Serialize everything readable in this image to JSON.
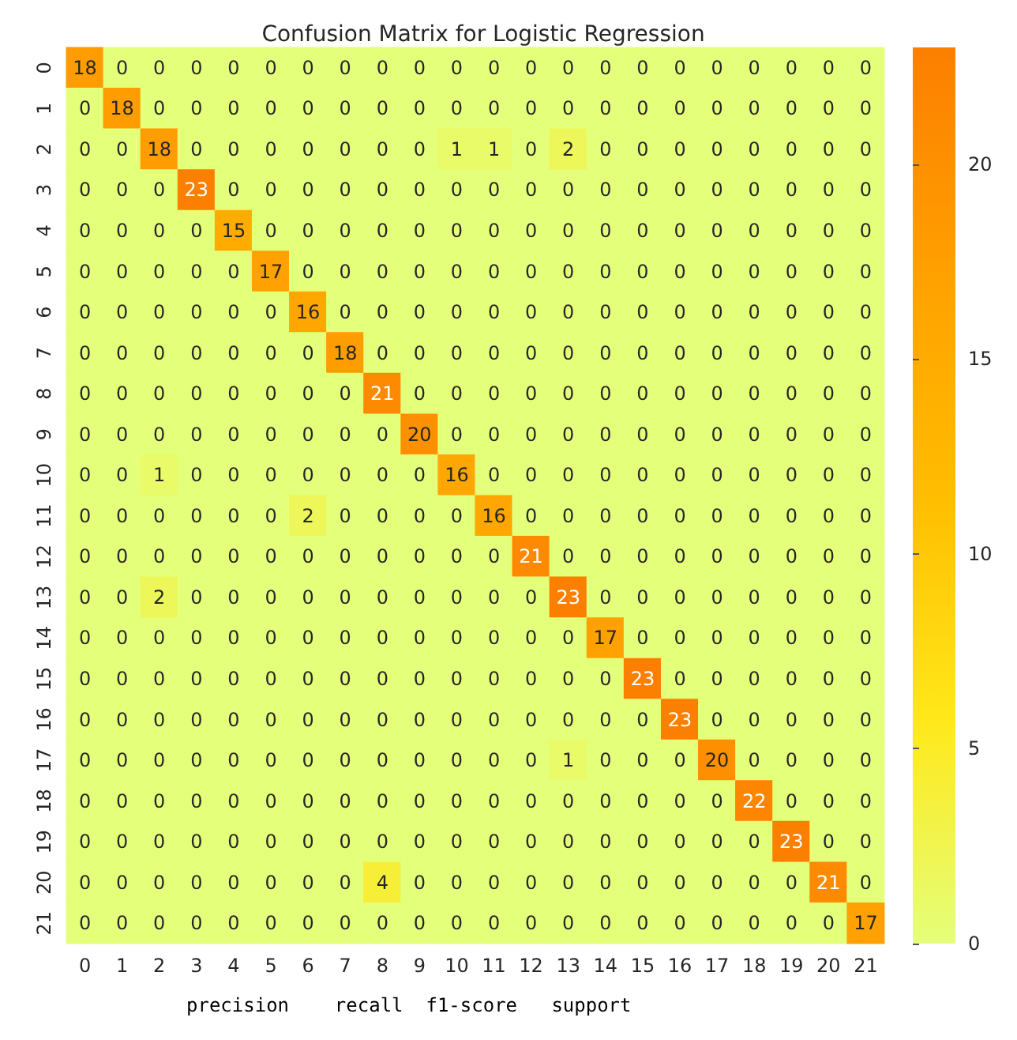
{
  "chart_data": {
    "type": "heatmap",
    "title": "Confusion Matrix for Logistic Regression",
    "categories": [
      "0",
      "1",
      "2",
      "3",
      "4",
      "5",
      "6",
      "7",
      "8",
      "9",
      "10",
      "11",
      "12",
      "13",
      "14",
      "15",
      "16",
      "17",
      "18",
      "19",
      "20",
      "21"
    ],
    "y_categories": [
      "0",
      "1",
      "2",
      "3",
      "4",
      "5",
      "6",
      "7",
      "8",
      "9",
      "10",
      "11",
      "12",
      "13",
      "14",
      "15",
      "16",
      "17",
      "18",
      "19",
      "20",
      "21"
    ],
    "cells": [
      [
        18,
        0,
        0,
        0,
        0,
        0,
        0,
        0,
        0,
        0,
        0,
        0,
        0,
        0,
        0,
        0,
        0,
        0,
        0,
        0,
        0,
        0
      ],
      [
        0,
        18,
        0,
        0,
        0,
        0,
        0,
        0,
        0,
        0,
        0,
        0,
        0,
        0,
        0,
        0,
        0,
        0,
        0,
        0,
        0,
        0
      ],
      [
        0,
        0,
        18,
        0,
        0,
        0,
        0,
        0,
        0,
        0,
        1,
        1,
        0,
        2,
        0,
        0,
        0,
        0,
        0,
        0,
        0,
        0
      ],
      [
        0,
        0,
        0,
        23,
        0,
        0,
        0,
        0,
        0,
        0,
        0,
        0,
        0,
        0,
        0,
        0,
        0,
        0,
        0,
        0,
        0,
        0
      ],
      [
        0,
        0,
        0,
        0,
        15,
        0,
        0,
        0,
        0,
        0,
        0,
        0,
        0,
        0,
        0,
        0,
        0,
        0,
        0,
        0,
        0,
        0
      ],
      [
        0,
        0,
        0,
        0,
        0,
        17,
        0,
        0,
        0,
        0,
        0,
        0,
        0,
        0,
        0,
        0,
        0,
        0,
        0,
        0,
        0,
        0
      ],
      [
        0,
        0,
        0,
        0,
        0,
        0,
        16,
        0,
        0,
        0,
        0,
        0,
        0,
        0,
        0,
        0,
        0,
        0,
        0,
        0,
        0,
        0
      ],
      [
        0,
        0,
        0,
        0,
        0,
        0,
        0,
        18,
        0,
        0,
        0,
        0,
        0,
        0,
        0,
        0,
        0,
        0,
        0,
        0,
        0,
        0
      ],
      [
        0,
        0,
        0,
        0,
        0,
        0,
        0,
        0,
        21,
        0,
        0,
        0,
        0,
        0,
        0,
        0,
        0,
        0,
        0,
        0,
        0,
        0
      ],
      [
        0,
        0,
        0,
        0,
        0,
        0,
        0,
        0,
        0,
        20,
        0,
        0,
        0,
        0,
        0,
        0,
        0,
        0,
        0,
        0,
        0,
        0
      ],
      [
        0,
        0,
        1,
        0,
        0,
        0,
        0,
        0,
        0,
        0,
        16,
        0,
        0,
        0,
        0,
        0,
        0,
        0,
        0,
        0,
        0,
        0
      ],
      [
        0,
        0,
        0,
        0,
        0,
        0,
        2,
        0,
        0,
        0,
        0,
        16,
        0,
        0,
        0,
        0,
        0,
        0,
        0,
        0,
        0,
        0
      ],
      [
        0,
        0,
        0,
        0,
        0,
        0,
        0,
        0,
        0,
        0,
        0,
        0,
        21,
        0,
        0,
        0,
        0,
        0,
        0,
        0,
        0,
        0
      ],
      [
        0,
        0,
        2,
        0,
        0,
        0,
        0,
        0,
        0,
        0,
        0,
        0,
        0,
        23,
        0,
        0,
        0,
        0,
        0,
        0,
        0,
        0
      ],
      [
        0,
        0,
        0,
        0,
        0,
        0,
        0,
        0,
        0,
        0,
        0,
        0,
        0,
        0,
        17,
        0,
        0,
        0,
        0,
        0,
        0,
        0
      ],
      [
        0,
        0,
        0,
        0,
        0,
        0,
        0,
        0,
        0,
        0,
        0,
        0,
        0,
        0,
        0,
        23,
        0,
        0,
        0,
        0,
        0,
        0
      ],
      [
        0,
        0,
        0,
        0,
        0,
        0,
        0,
        0,
        0,
        0,
        0,
        0,
        0,
        0,
        0,
        0,
        23,
        0,
        0,
        0,
        0,
        0
      ],
      [
        0,
        0,
        0,
        0,
        0,
        0,
        0,
        0,
        0,
        0,
        0,
        0,
        0,
        1,
        0,
        0,
        0,
        20,
        0,
        0,
        0,
        0
      ],
      [
        0,
        0,
        0,
        0,
        0,
        0,
        0,
        0,
        0,
        0,
        0,
        0,
        0,
        0,
        0,
        0,
        0,
        0,
        22,
        0,
        0,
        0
      ],
      [
        0,
        0,
        0,
        0,
        0,
        0,
        0,
        0,
        0,
        0,
        0,
        0,
        0,
        0,
        0,
        0,
        0,
        0,
        0,
        23,
        0,
        0
      ],
      [
        0,
        0,
        0,
        0,
        0,
        0,
        0,
        0,
        4,
        0,
        0,
        0,
        0,
        0,
        0,
        0,
        0,
        0,
        0,
        0,
        21,
        0
      ],
      [
        0,
        0,
        0,
        0,
        0,
        0,
        0,
        0,
        0,
        0,
        0,
        0,
        0,
        0,
        0,
        0,
        0,
        0,
        0,
        0,
        0,
        17
      ]
    ],
    "data_labels": true,
    "clim": [
      0,
      23
    ],
    "cticks": [
      0,
      5,
      10,
      15,
      20
    ],
    "annotations": [
      "precision    recall  f1-score   support"
    ]
  }
}
